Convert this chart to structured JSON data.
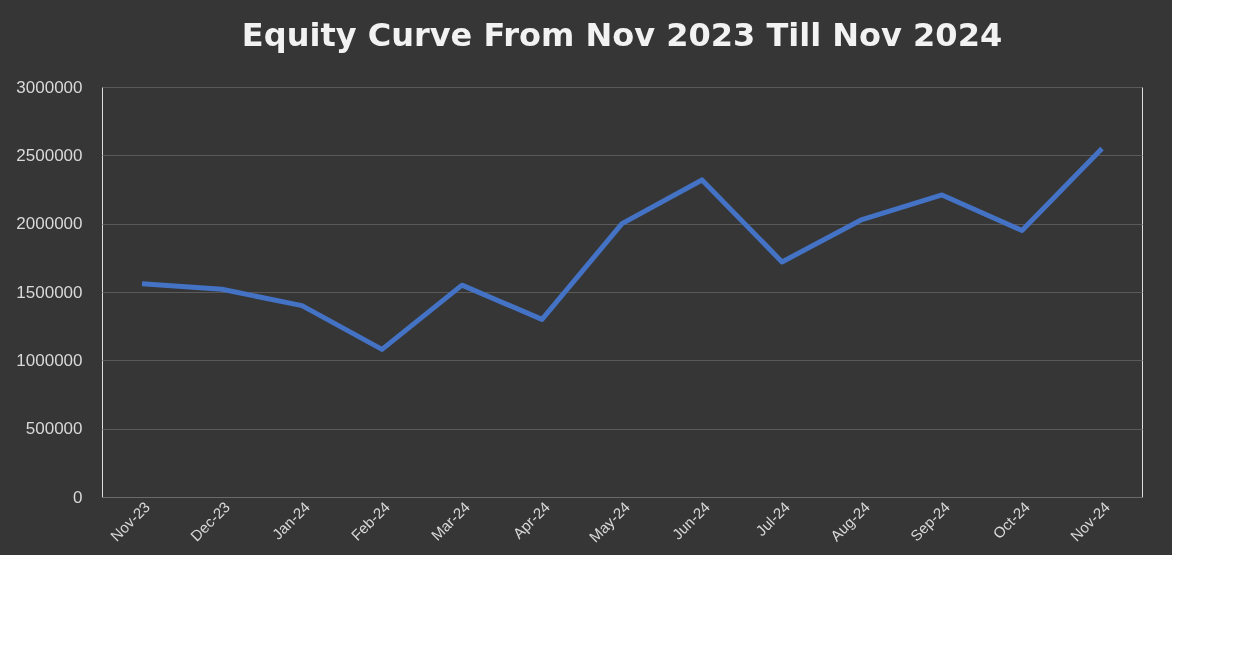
{
  "chart_data": {
    "type": "line",
    "title": "Equity Curve From Nov 2023 Till Nov 2024",
    "categories": [
      "Nov-23",
      "Dec-23",
      "Jan-24",
      "Feb-24",
      "Mar-24",
      "Apr-24",
      "May-24",
      "Jun-24",
      "Jul-24",
      "Aug-24",
      "Sep-24",
      "Oct-24",
      "Nov-24"
    ],
    "series": [
      {
        "color": "#4472c4",
        "values": [
          1560000,
          1520000,
          1400000,
          1080000,
          1550000,
          1300000,
          2000000,
          2320000,
          1720000,
          2030000,
          2210000,
          1950000,
          2550000
        ]
      }
    ],
    "ylim": [
      0,
      3000000
    ],
    "yticks": [
      0,
      500000,
      1000000,
      1500000,
      2000000,
      2500000,
      3000000
    ],
    "grid": "y",
    "marker": "none",
    "line_style": "solid"
  }
}
